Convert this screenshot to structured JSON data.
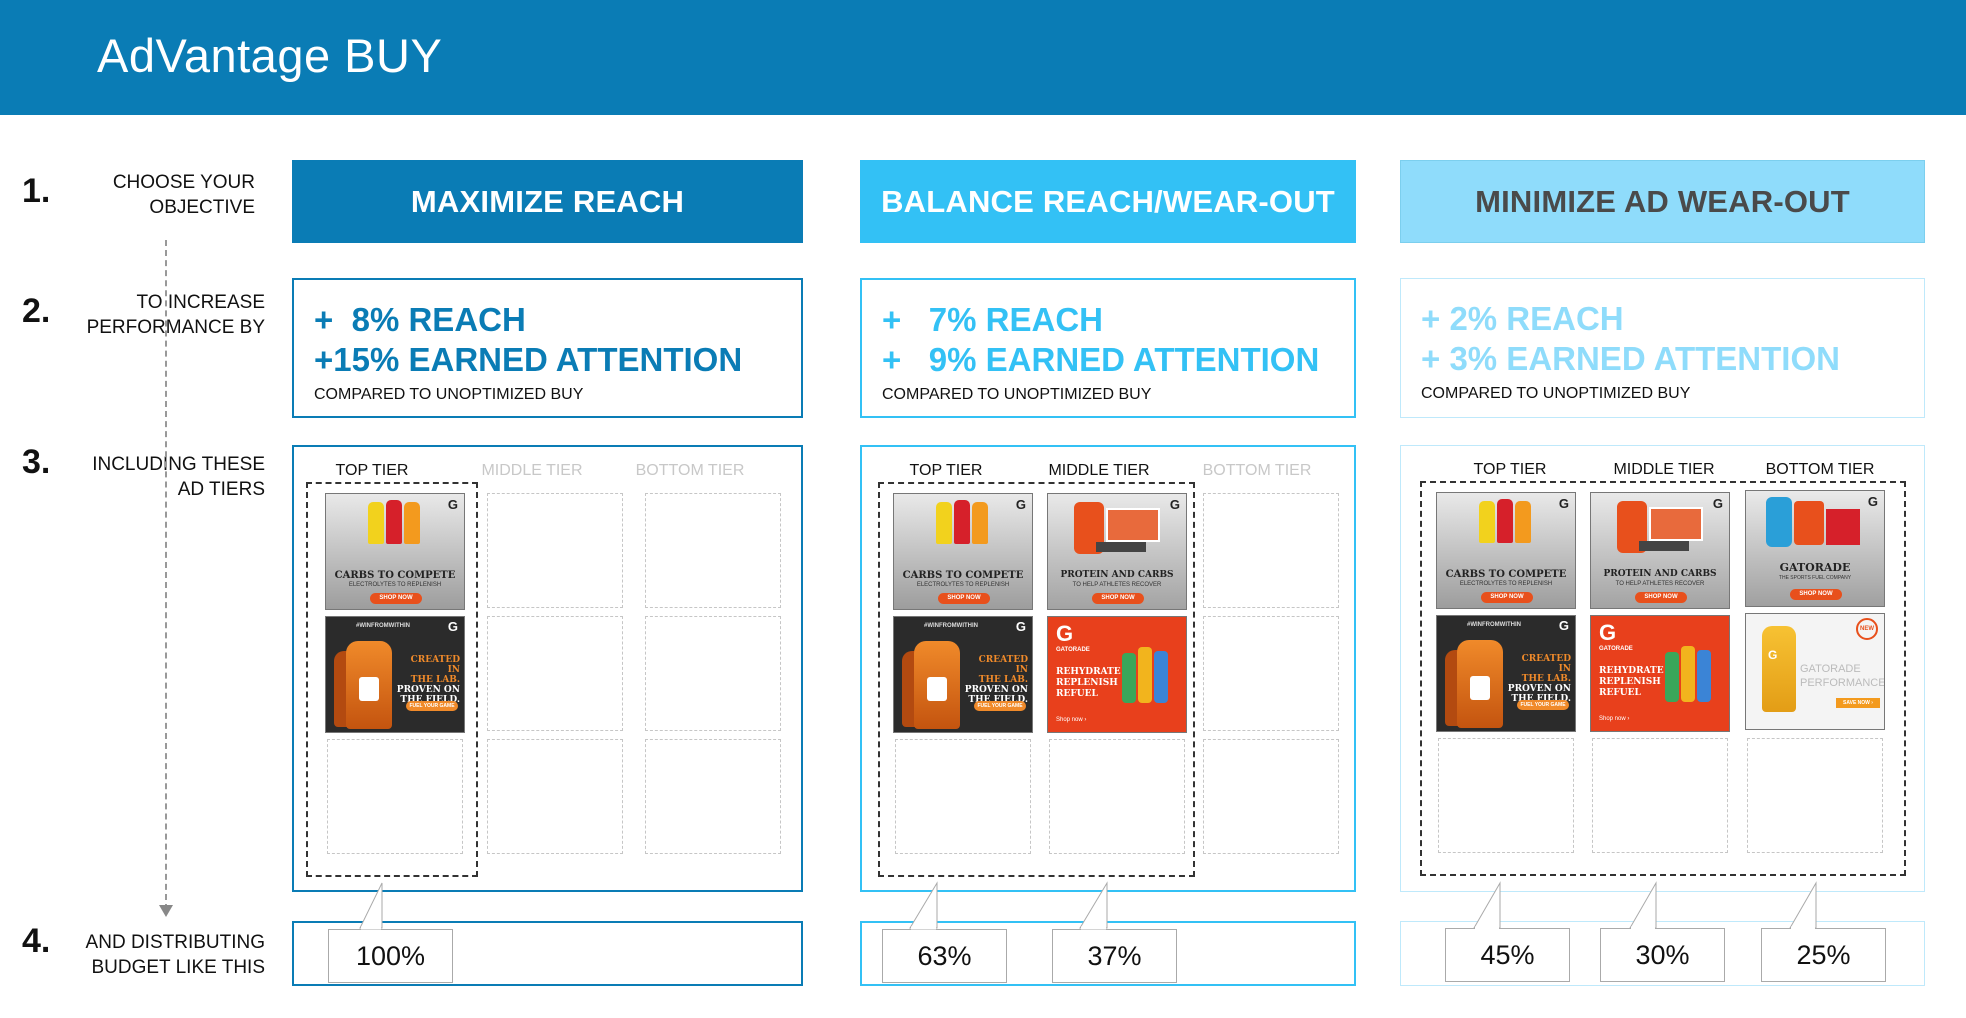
{
  "header": {
    "title": "AdVantage BUY"
  },
  "steps": [
    {
      "num": "1.",
      "line1": "CHOOSE YOUR",
      "line2": "OBJECTIVE"
    },
    {
      "num": "2.",
      "line1": "TO INCREASE",
      "line2": "PERFORMANCE BY"
    },
    {
      "num": "3.",
      "line1": "INCLUDING THESE",
      "line2": "AD TIERS"
    },
    {
      "num": "4.",
      "line1": "AND DISTRIBUTING",
      "line2": "BUDGET LIKE THIS"
    }
  ],
  "objectives": [
    {
      "label": "MAXIMIZE REACH",
      "reach": "+  8% REACH",
      "attention": "+15% EARNED ATTENTION",
      "note": "COMPARED TO UNOPTIMIZED BUY",
      "budget": [
        "100%"
      ]
    },
    {
      "label": "BALANCE REACH/WEAR-OUT",
      "reach": "+   7% REACH",
      "attention": "+   9% EARNED ATTENTION",
      "note": "COMPARED TO UNOPTIMIZED BUY",
      "budget": [
        "63%",
        "37%"
      ]
    },
    {
      "label": "MINIMIZE AD WEAR-OUT",
      "reach": "+ 2% REACH",
      "attention": "+ 3% EARNED ATTENTION",
      "note": "COMPARED TO UNOPTIMIZED BUY",
      "budget": [
        "45%",
        "30%",
        "25%"
      ]
    }
  ],
  "tiers": {
    "top": "TOP TIER",
    "middle": "MIDDLE TIER",
    "bottom": "BOTTOM TIER"
  },
  "ads": {
    "carbs": {
      "headline": "CARBS TO COMPETE",
      "sub": "ELECTROLYTES TO REPLENISH",
      "cta": "SHOP NOW"
    },
    "lab": {
      "tag": "#WINFROMWITHIN",
      "l1": "CREATED IN",
      "l2": "THE LAB.",
      "l3": "PROVEN ON",
      "l4": "THE FIELD.",
      "cta": "FUEL YOUR GAME"
    },
    "protein": {
      "headline": "PROTEIN AND CARBS",
      "sub": "TO HELP ATHLETES RECOVER",
      "cta": "SHOP NOW"
    },
    "rehydrate": {
      "brand": "GATORADE",
      "l1": "REHYDRATE",
      "l2": "REPLENISH",
      "l3": "REFUEL",
      "cta": "Shop now ›"
    },
    "gatorade": {
      "headline": "GATORADE",
      "sub": "THE SPORTS FUEL COMPANY",
      "cta": "SHOP NOW"
    },
    "performance": {
      "badge": "NEW",
      "l1": "GATORADE",
      "l2": "PERFORMANCE",
      "cta": "SAVE NOW ›"
    }
  },
  "colors": {
    "header": "#0a7cb5",
    "strong": "#0a7cb5",
    "medium": "#33c1f5",
    "light": "#8fdcfb",
    "adOrange": "#e8501c",
    "adDark": "#2b2b2b"
  },
  "icons": {
    "brand": "gatorade-g-logo-icon"
  }
}
